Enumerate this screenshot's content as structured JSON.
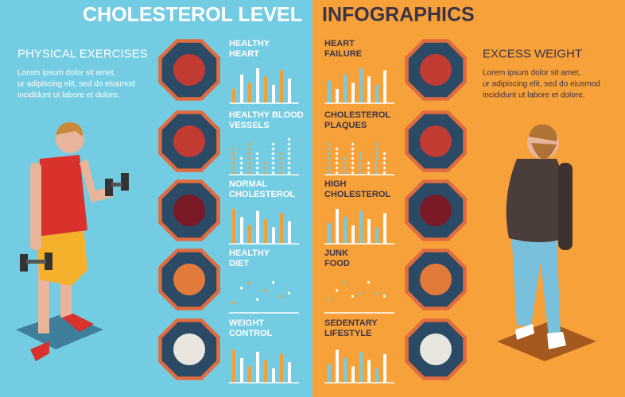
{
  "header": {
    "title_left": "CHOLESTEROL LEVEL",
    "title_right": "INFOGRAPHICS"
  },
  "left_panel": {
    "heading": "PHYSICAL EXERCISES",
    "body_lines": [
      "Lorem ipsum dolor sit amet,",
      "ur adipiscing elit, sed do eiusmod",
      "incididunt ut labore et dolore."
    ]
  },
  "right_panel": {
    "heading": "EXCESS WEIGHT",
    "body_lines": [
      "Lorem ipsum dolor sit amet,",
      "ur adipiscing elit, sed do eiusmod",
      "incididunt ut labore et dolore."
    ]
  },
  "left_items": [
    {
      "label_lines": [
        "HEALTHY",
        "HEART"
      ]
    },
    {
      "label_lines": [
        "HEALTHY BLOOD",
        "VESSELS"
      ]
    },
    {
      "label_lines": [
        "NORMAL",
        "CHOLESTEROL"
      ]
    },
    {
      "label_lines": [
        "HEALTHY",
        "DIET"
      ]
    },
    {
      "label_lines": [
        "WEIGHT",
        "CONTROL"
      ]
    }
  ],
  "right_items": [
    {
      "label_lines": [
        "HEART",
        "FAILURE"
      ]
    },
    {
      "label_lines": [
        "CHOLESTEROL",
        "PLAQUES"
      ]
    },
    {
      "label_lines": [
        "HIGH",
        "CHOLESTEROL"
      ]
    },
    {
      "label_lines": [
        "JUNK",
        "FOOD"
      ]
    },
    {
      "label_lines": [
        "SEDENTARY",
        "LIFESTYLE"
      ]
    }
  ]
}
